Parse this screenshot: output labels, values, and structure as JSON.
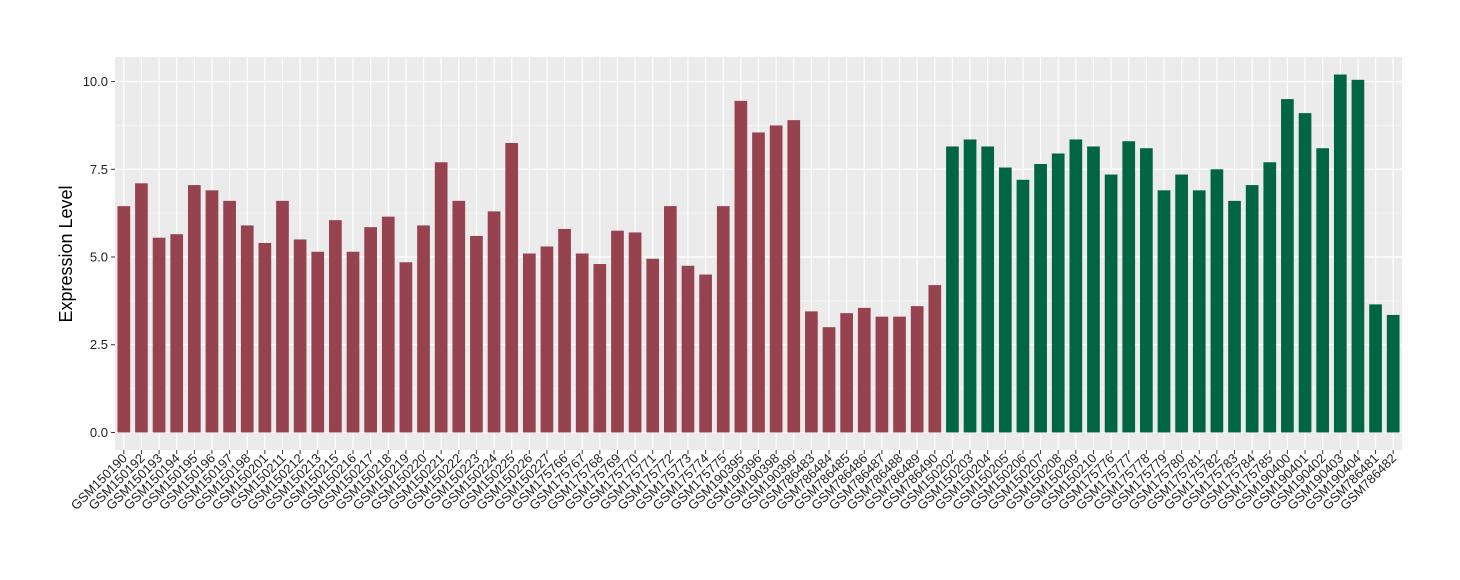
{
  "chart_data": {
    "type": "bar",
    "title": "",
    "xlabel": "",
    "ylabel": "Expression Level",
    "ylim": [
      -0.5,
      10.7
    ],
    "yticks": [
      0.0,
      2.5,
      5.0,
      7.5,
      10.0
    ],
    "ytick_labels": [
      "0.0",
      "2.5",
      "5.0",
      "7.5",
      "10.0"
    ],
    "grid": true,
    "legend": "none",
    "colors": {
      "group1": "#96424F",
      "group2": "#006543",
      "panel": "#EBEBEB",
      "grid_major": "#FFFFFF",
      "grid_minor": "#F5F5F5"
    },
    "categories": [
      "GSM150190",
      "GSM150192",
      "GSM150193",
      "GSM150194",
      "GSM150195",
      "GSM150196",
      "GSM150197",
      "GSM150198",
      "GSM150201",
      "GSM150211",
      "GSM150212",
      "GSM150213",
      "GSM150215",
      "GSM150216",
      "GSM150217",
      "GSM150218",
      "GSM150219",
      "GSM150220",
      "GSM150221",
      "GSM150222",
      "GSM150223",
      "GSM150224",
      "GSM150225",
      "GSM150226",
      "GSM150227",
      "GSM175766",
      "GSM175767",
      "GSM175768",
      "GSM175769",
      "GSM175770",
      "GSM175771",
      "GSM175772",
      "GSM175773",
      "GSM175774",
      "GSM175775",
      "GSM190395",
      "GSM190396",
      "GSM190398",
      "GSM190399",
      "GSM786483",
      "GSM786484",
      "GSM786485",
      "GSM786486",
      "GSM786487",
      "GSM786488",
      "GSM786489",
      "GSM786490",
      "GSM150202",
      "GSM150203",
      "GSM150204",
      "GSM150205",
      "GSM150206",
      "GSM150207",
      "GSM150208",
      "GSM150209",
      "GSM150210",
      "GSM175776",
      "GSM175777",
      "GSM175778",
      "GSM175779",
      "GSM175780",
      "GSM175781",
      "GSM175782",
      "GSM175783",
      "GSM175784",
      "GSM175785",
      "GSM190400",
      "GSM190401",
      "GSM190402",
      "GSM190403",
      "GSM190404",
      "GSM786481",
      "GSM786482"
    ],
    "values": [
      6.45,
      7.1,
      5.55,
      5.65,
      7.05,
      6.9,
      6.6,
      5.9,
      5.4,
      6.6,
      5.5,
      5.15,
      6.05,
      5.15,
      5.85,
      6.15,
      4.85,
      5.9,
      7.7,
      6.6,
      5.6,
      6.3,
      8.25,
      5.1,
      5.3,
      5.8,
      5.1,
      4.8,
      5.75,
      5.7,
      4.95,
      6.45,
      4.75,
      4.5,
      6.45,
      9.45,
      8.55,
      8.75,
      8.9,
      3.45,
      3.0,
      3.4,
      3.55,
      3.3,
      3.3,
      3.6,
      4.2,
      8.15,
      8.35,
      8.15,
      7.55,
      7.2,
      7.65,
      7.95,
      8.35,
      8.15,
      7.35,
      8.3,
      8.1,
      6.9,
      7.35,
      6.9,
      7.5,
      6.6,
      7.05,
      7.7,
      9.5,
      9.1,
      8.1,
      10.2,
      10.05,
      3.65,
      3.35
    ],
    "groups": [
      1,
      1,
      1,
      1,
      1,
      1,
      1,
      1,
      1,
      1,
      1,
      1,
      1,
      1,
      1,
      1,
      1,
      1,
      1,
      1,
      1,
      1,
      1,
      1,
      1,
      1,
      1,
      1,
      1,
      1,
      1,
      1,
      1,
      1,
      1,
      1,
      1,
      1,
      1,
      1,
      1,
      1,
      1,
      1,
      1,
      1,
      1,
      2,
      2,
      2,
      2,
      2,
      2,
      2,
      2,
      2,
      2,
      2,
      2,
      2,
      2,
      2,
      2,
      2,
      2,
      2,
      2,
      2,
      2,
      2,
      2,
      2,
      2
    ]
  }
}
